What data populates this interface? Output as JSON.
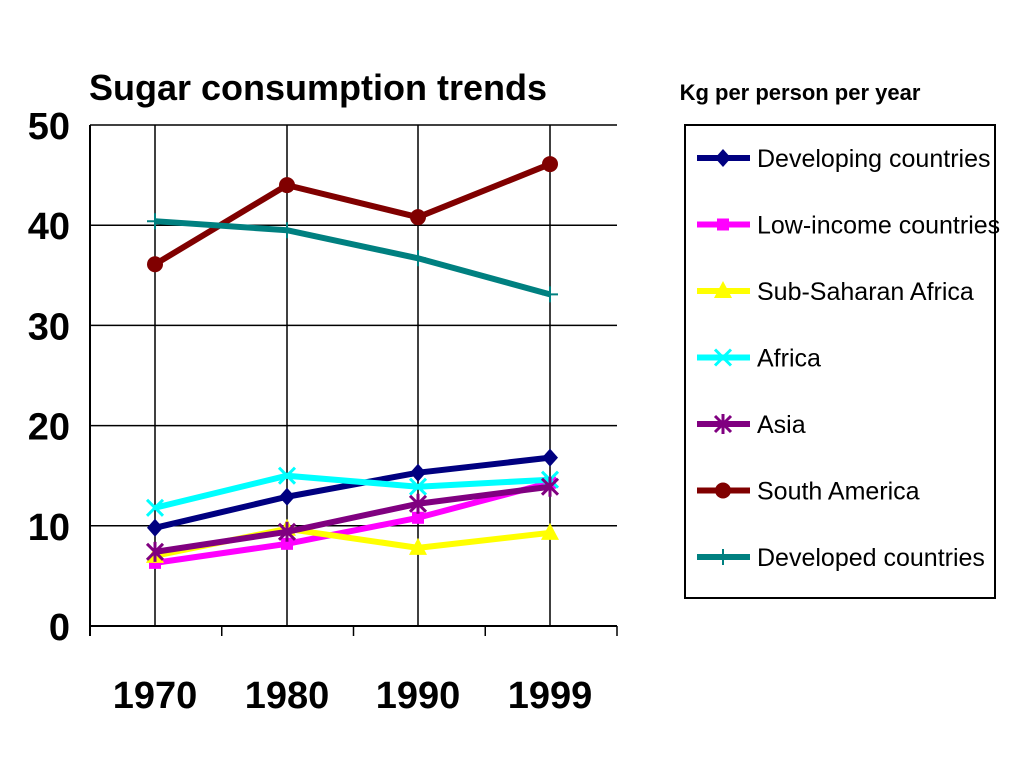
{
  "chart_data": {
    "type": "line",
    "title": "Sugar consumption trends",
    "subtitle": "Kg per person per year",
    "xlabel": "",
    "ylabel": "",
    "categories": [
      "1970",
      "1980",
      "1990",
      "1999"
    ],
    "ylim": [
      0,
      50
    ],
    "yticks": [
      0,
      10,
      20,
      30,
      40,
      50
    ],
    "grid": true,
    "legend_position": "right",
    "series": [
      {
        "name": "Developing countries",
        "values": [
          9.8,
          12.9,
          15.3,
          16.8
        ],
        "color": "#000080",
        "marker": "diamond"
      },
      {
        "name": "Low-income countries",
        "values": [
          6.3,
          8.2,
          10.8,
          14.3
        ],
        "color": "#ff00ff",
        "marker": "square"
      },
      {
        "name": "Sub-Saharan Africa",
        "values": [
          7.0,
          9.7,
          7.8,
          9.3
        ],
        "color": "#ffff00",
        "marker": "triangle"
      },
      {
        "name": "Africa",
        "values": [
          11.8,
          15.0,
          13.9,
          14.6
        ],
        "color": "#00ffff",
        "marker": "x"
      },
      {
        "name": "Asia",
        "values": [
          7.4,
          9.4,
          12.2,
          13.9
        ],
        "color": "#800080",
        "marker": "star"
      },
      {
        "name": "South America",
        "values": [
          36.1,
          44.0,
          40.8,
          46.1
        ],
        "color": "#800000",
        "marker": "circle"
      },
      {
        "name": "Developed countries",
        "values": [
          40.4,
          39.5,
          36.7,
          33.1
        ],
        "color": "#008080",
        "marker": "plus"
      }
    ]
  }
}
